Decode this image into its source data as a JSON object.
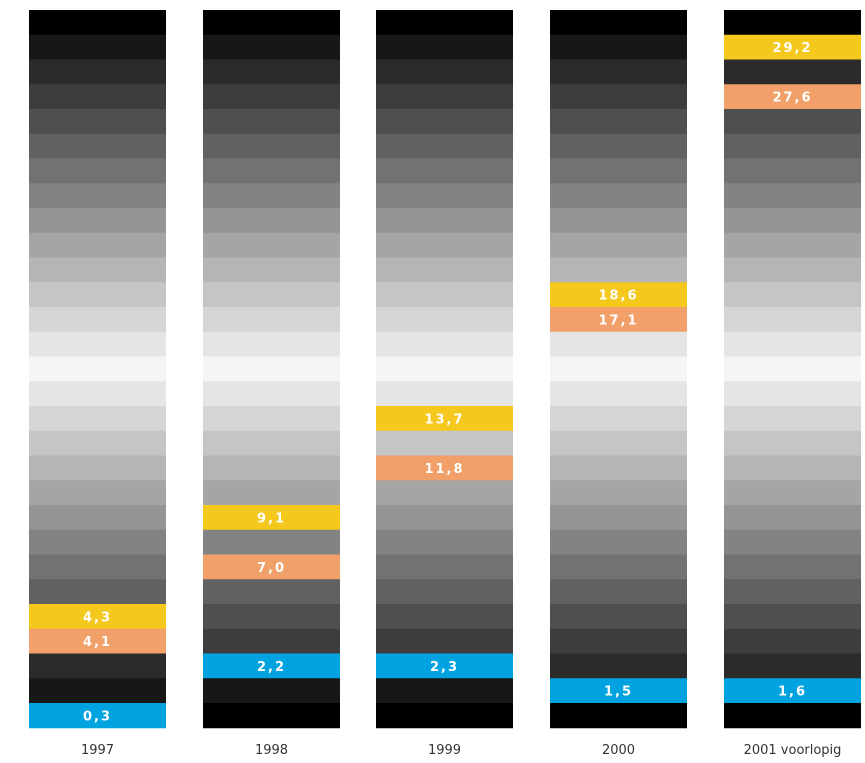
{
  "chart_data": {
    "type": "bar",
    "categories": [
      "1997",
      "1998",
      "1999",
      "2000",
      "2001 voorlopig"
    ],
    "rows": 29,
    "series": [
      {
        "color": "#f5c81e",
        "values": [
          "4,3",
          "9,1",
          "13,7",
          "18,6",
          "29,2"
        ],
        "rows_from_top": [
          24,
          20,
          16,
          11,
          1
        ]
      },
      {
        "color": "#f0a068",
        "values": [
          "4,1",
          "7,0",
          "11,8",
          "17,1",
          "27,6"
        ],
        "rows_from_top": [
          25,
          22,
          18,
          12,
          3
        ]
      },
      {
        "color": "#00a3e0",
        "values": [
          "0,3",
          "2,2",
          "2,3",
          "1,5",
          "1,6"
        ],
        "rows_from_top": [
          28,
          26,
          26,
          27,
          27
        ]
      }
    ],
    "gradient": {
      "dark": "#000000",
      "light": "#f5f5f5",
      "center_row": 14
    },
    "grid": false,
    "legend": "none"
  }
}
